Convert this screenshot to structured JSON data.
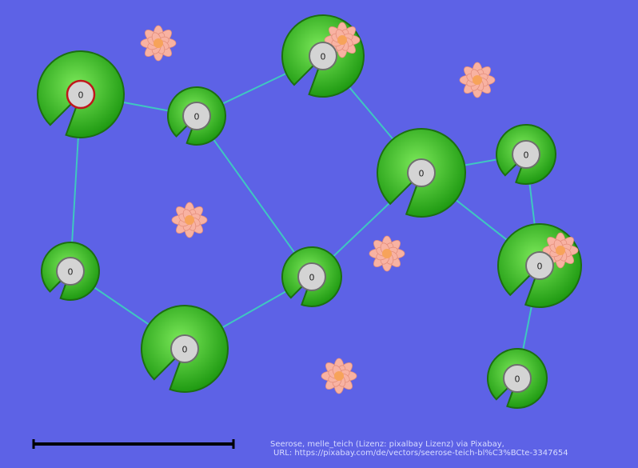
{
  "colors": {
    "background": "#5d62e6",
    "edge": "#3fc7c0",
    "pad_fill_dark": "#2fa81c",
    "pad_fill_light": "#6de04c",
    "pad_stroke": "#1c6f10",
    "node_fill": "#d4d4d4",
    "node_stroke": "#6f6f6f",
    "selected_stroke": "#c0171b",
    "flower": "#f8b2a2",
    "flower_center": "#f7a35a",
    "scale_bar": "#000000"
  },
  "nodes": [
    {
      "id": "n1",
      "label": "0",
      "selected": true
    },
    {
      "id": "n2",
      "label": "0",
      "selected": false
    },
    {
      "id": "n3",
      "label": "0",
      "selected": false
    },
    {
      "id": "n4",
      "label": "0",
      "selected": false
    },
    {
      "id": "n5",
      "label": "0",
      "selected": false
    },
    {
      "id": "n6",
      "label": "0",
      "selected": false
    },
    {
      "id": "n7",
      "label": "0",
      "selected": false
    },
    {
      "id": "n8",
      "label": "0",
      "selected": false
    },
    {
      "id": "n9",
      "label": "0",
      "selected": false
    },
    {
      "id": "n10",
      "label": "0",
      "selected": false
    },
    {
      "id": "n11",
      "label": "0",
      "selected": false
    }
  ],
  "edges": [
    [
      "n1",
      "n2"
    ],
    [
      "n2",
      "n3"
    ],
    [
      "n1",
      "n4"
    ],
    [
      "n4",
      "n5"
    ],
    [
      "n5",
      "n6"
    ],
    [
      "n2",
      "n6"
    ],
    [
      "n6",
      "n7"
    ],
    [
      "n3",
      "n7"
    ],
    [
      "n7",
      "n8"
    ],
    [
      "n7",
      "n9"
    ],
    [
      "n8",
      "n9"
    ],
    [
      "n9",
      "n10"
    ]
  ],
  "credit": {
    "line1": "Seerose, melle_teich (Lizenz: pixalbay Lizenz) via Pixabay,",
    "line2": "URL: https://pixabay.com/de/vectors/seerose-teich-bl%C3%BCte-3347654"
  }
}
